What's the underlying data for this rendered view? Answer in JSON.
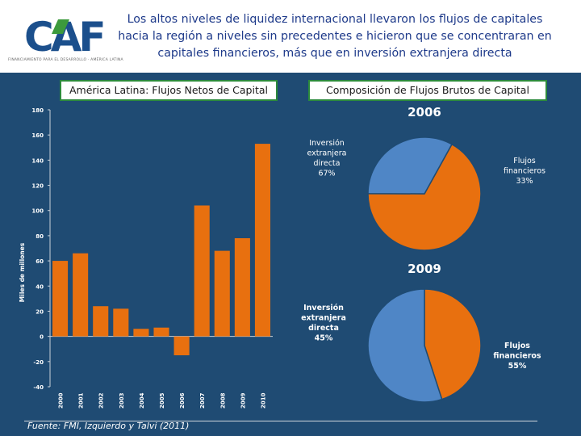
{
  "header": {
    "logo_text": "CAF",
    "logo_tagline": "FINANCIAMIENTO PARA EL DESARROLLO · AMÉRICA LATINA",
    "title_lines": [
      "Los altos niveles de liquidez internacional llevaron los flujos de capitales",
      "hacia la región a niveles sin precedentes e hicieron que se concentraran en",
      "capitales financieros, más que en inversión extranjera directa"
    ]
  },
  "left_panel": {
    "title": "América Latina: Flujos Netos de Capital"
  },
  "right_panel": {
    "title": "Composición de Flujos Brutos de Capital"
  },
  "source": "Fuente: FMI, Izquierdo y Talvi (2011)",
  "colors": {
    "bar": "#e8700f",
    "fid": "#e8700f",
    "financial": "#4f86c6",
    "background": "#1f4b73",
    "logo_blue": "#1b4f8c",
    "logo_green": "#3c9a3c"
  },
  "chart_data": [
    {
      "type": "bar",
      "title": "América Latina: Flujos Netos de Capital",
      "ylabel": "Miles de millones",
      "xlabel": "",
      "categories": [
        "2000",
        "2001",
        "2002",
        "2003",
        "2004",
        "2005",
        "2006",
        "2007",
        "2008",
        "2009",
        "2010"
      ],
      "values": [
        60,
        66,
        24,
        22,
        6,
        7,
        -15,
        104,
        68,
        78,
        153
      ],
      "ylim": [
        -40,
        180
      ],
      "yticks": [
        -40,
        -20,
        0,
        20,
        40,
        60,
        80,
        100,
        120,
        140,
        160,
        180
      ],
      "grid": false
    },
    {
      "type": "pie",
      "title": "2006",
      "slices": [
        {
          "label": "Inversión extranjera directa",
          "value": 67,
          "value_label": "67%"
        },
        {
          "label": "Flujos financieros",
          "value": 33,
          "value_label": "33%"
        }
      ]
    },
    {
      "type": "pie",
      "title": "2009",
      "slices": [
        {
          "label": "Inversión extranjera directa",
          "value": 45,
          "value_label": "45%"
        },
        {
          "label": "Flujos financieros",
          "value": 55,
          "value_label": "55%"
        }
      ]
    }
  ]
}
